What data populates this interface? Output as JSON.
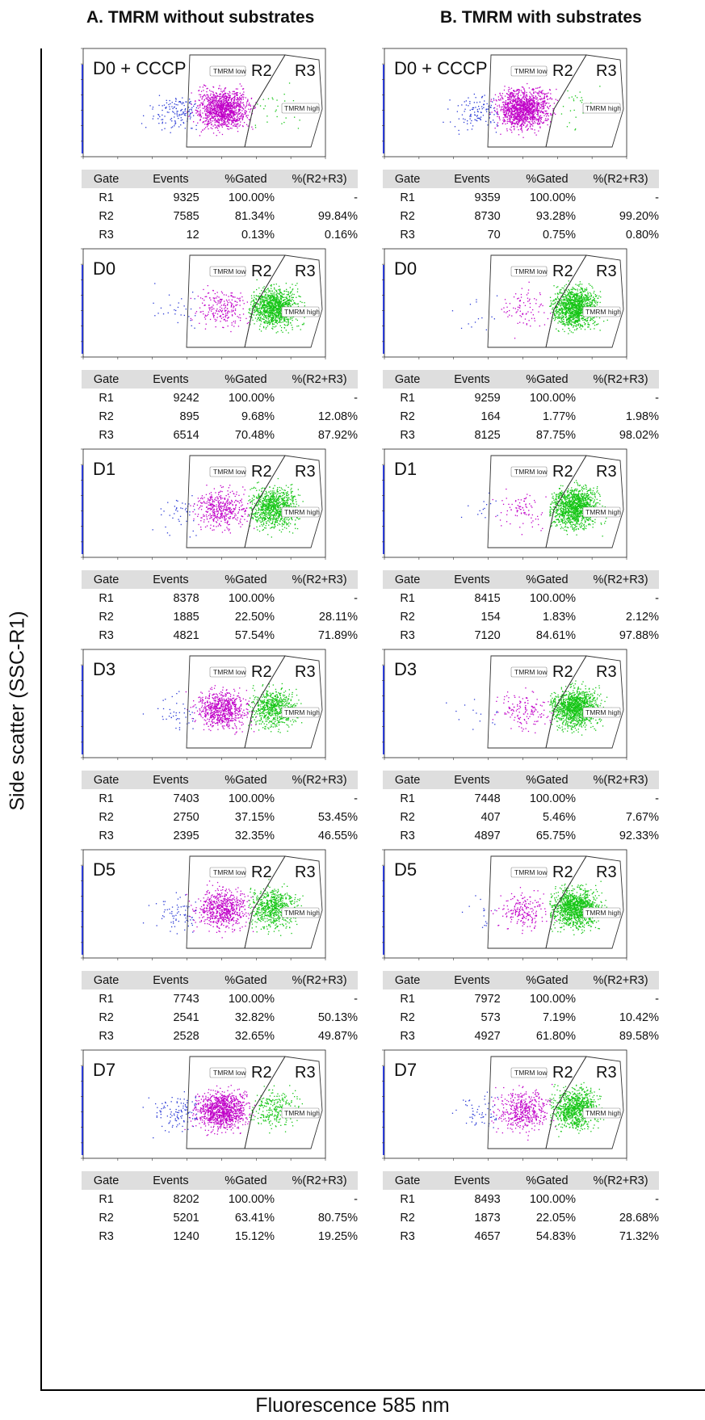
{
  "titles": {
    "col_a": "A. TMRM without substrates",
    "col_b": "B. TMRM with substrates",
    "ylabel": "Side scatter (SSC-R1)",
    "xlabel": "Fluorescence 585 nm"
  },
  "table_header": [
    "Gate",
    "Events",
    "%Gated",
    "%(R2+R3)"
  ],
  "gate_tags": {
    "low": "TMRM low",
    "high": "TMRM high",
    "r2": "R2",
    "r3": "R3"
  },
  "colors": {
    "below_gate": "#2b3bd6",
    "R2": "#c000c8",
    "R3": "#16c616"
  },
  "chart_data": [
    {
      "type": "scatter",
      "column": "A",
      "label": "D0 + CCCP",
      "rows": [
        [
          "R1",
          "9325",
          "100.00%",
          "-"
        ],
        [
          "R2",
          "7585",
          "81.34%",
          "99.84%"
        ],
        [
          "R3",
          "12",
          "0.13%",
          "0.16%"
        ]
      ],
      "population": {
        "blue": 0.1,
        "R2": 0.88,
        "R3": 0.02
      }
    },
    {
      "type": "scatter",
      "column": "A",
      "label": "D0",
      "rows": [
        [
          "R1",
          "9242",
          "100.00%",
          "-"
        ],
        [
          "R2",
          "895",
          "9.68%",
          "12.08%"
        ],
        [
          "R3",
          "6514",
          "70.48%",
          "87.92%"
        ]
      ],
      "population": {
        "blue": 0.02,
        "R2": 0.16,
        "R3": 0.82
      }
    },
    {
      "type": "scatter",
      "column": "A",
      "label": "D1",
      "rows": [
        [
          "R1",
          "8378",
          "100.00%",
          "-"
        ],
        [
          "R2",
          "1885",
          "22.50%",
          "28.11%"
        ],
        [
          "R3",
          "4821",
          "57.54%",
          "71.89%"
        ]
      ],
      "population": {
        "blue": 0.03,
        "R2": 0.3,
        "R3": 0.67
      }
    },
    {
      "type": "scatter",
      "column": "A",
      "label": "D3",
      "rows": [
        [
          "R1",
          "7403",
          "100.00%",
          "-"
        ],
        [
          "R2",
          "2750",
          "37.15%",
          "53.45%"
        ],
        [
          "R3",
          "2395",
          "32.35%",
          "46.55%"
        ]
      ],
      "population": {
        "blue": 0.03,
        "R2": 0.5,
        "R3": 0.47
      }
    },
    {
      "type": "scatter",
      "column": "A",
      "label": "D5",
      "rows": [
        [
          "R1",
          "7743",
          "100.00%",
          "-"
        ],
        [
          "R2",
          "2541",
          "32.82%",
          "50.13%"
        ],
        [
          "R3",
          "2528",
          "32.65%",
          "49.87%"
        ]
      ],
      "population": {
        "blue": 0.05,
        "R2": 0.48,
        "R3": 0.47
      }
    },
    {
      "type": "scatter",
      "column": "A",
      "label": "D7",
      "rows": [
        [
          "R1",
          "8202",
          "100.00%",
          "-"
        ],
        [
          "R2",
          "5201",
          "63.41%",
          "80.75%"
        ],
        [
          "R3",
          "1240",
          "15.12%",
          "19.25%"
        ]
      ],
      "population": {
        "blue": 0.08,
        "R2": 0.74,
        "R3": 0.18
      }
    },
    {
      "type": "scatter",
      "column": "B",
      "label": "D0 + CCCP",
      "rows": [
        [
          "R1",
          "9359",
          "100.00%",
          "-"
        ],
        [
          "R2",
          "8730",
          "93.28%",
          "99.20%"
        ],
        [
          "R3",
          "70",
          "0.75%",
          "0.80%"
        ]
      ],
      "population": {
        "blue": 0.08,
        "R2": 0.9,
        "R3": 0.02
      }
    },
    {
      "type": "scatter",
      "column": "B",
      "label": "D0",
      "rows": [
        [
          "R1",
          "9259",
          "100.00%",
          "-"
        ],
        [
          "R2",
          "164",
          "1.77%",
          "1.98%"
        ],
        [
          "R3",
          "8125",
          "87.75%",
          "98.02%"
        ]
      ],
      "population": {
        "blue": 0.01,
        "R2": 0.06,
        "R3": 0.93
      }
    },
    {
      "type": "scatter",
      "column": "B",
      "label": "D1",
      "rows": [
        [
          "R1",
          "8415",
          "100.00%",
          "-"
        ],
        [
          "R2",
          "154",
          "1.83%",
          "2.12%"
        ],
        [
          "R3",
          "7120",
          "84.61%",
          "97.88%"
        ]
      ],
      "population": {
        "blue": 0.01,
        "R2": 0.06,
        "R3": 0.93
      }
    },
    {
      "type": "scatter",
      "column": "B",
      "label": "D3",
      "rows": [
        [
          "R1",
          "7448",
          "100.00%",
          "-"
        ],
        [
          "R2",
          "407",
          "5.46%",
          "7.67%"
        ],
        [
          "R3",
          "4897",
          "65.75%",
          "92.33%"
        ]
      ],
      "population": {
        "blue": 0.01,
        "R2": 0.1,
        "R3": 0.89
      }
    },
    {
      "type": "scatter",
      "column": "B",
      "label": "D5",
      "rows": [
        [
          "R1",
          "7972",
          "100.00%",
          "-"
        ],
        [
          "R2",
          "573",
          "7.19%",
          "10.42%"
        ],
        [
          "R3",
          "4927",
          "61.80%",
          "89.58%"
        ]
      ],
      "population": {
        "blue": 0.01,
        "R2": 0.14,
        "R3": 0.85
      }
    },
    {
      "type": "scatter",
      "column": "B",
      "label": "D7",
      "rows": [
        [
          "R1",
          "8493",
          "100.00%",
          "-"
        ],
        [
          "R2",
          "1873",
          "22.05%",
          "28.68%"
        ],
        [
          "R3",
          "4657",
          "54.83%",
          "71.32%"
        ]
      ],
      "population": {
        "blue": 0.04,
        "R2": 0.33,
        "R3": 0.63
      }
    }
  ]
}
